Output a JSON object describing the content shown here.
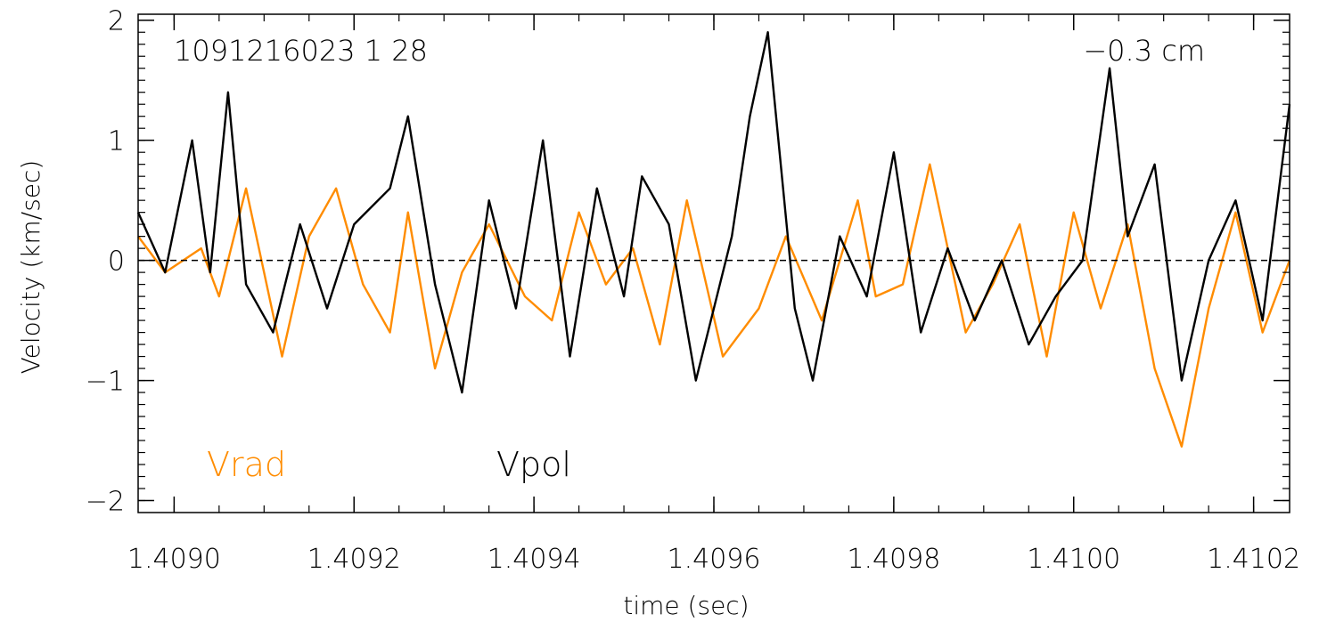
{
  "chart_data": {
    "type": "line",
    "title": "",
    "xlabel": "time (sec)",
    "ylabel": "Velocity (km/sec)",
    "xlim": [
      1.40896,
      1.41024
    ],
    "ylim": [
      -2.1,
      2.05
    ],
    "x_ticks": [
      1.409,
      1.4092,
      1.4094,
      1.4096,
      1.4098,
      1.41,
      1.4102
    ],
    "x_tick_labels": [
      "1.4090",
      "1.4092",
      "1.4094",
      "1.4096",
      "1.4098",
      "1.4100",
      "1.4102"
    ],
    "x_minor_step": 5e-05,
    "y_ticks": [
      -2,
      -1,
      0,
      1,
      2
    ],
    "y_tick_labels": [
      "−2",
      "−1",
      "0",
      "1",
      "2"
    ],
    "y_minor_step": 0.1,
    "reference_line": {
      "y": 0,
      "style": "dashed"
    },
    "annotations": {
      "shot_label": "1091216023  1  28",
      "position_label": "−0.3 cm"
    },
    "series": [
      {
        "name": "Vrad",
        "color": "#ff8c00",
        "x": [
          1.40896,
          1.40899,
          1.40903,
          1.40905,
          1.40908,
          1.40912,
          1.40915,
          1.40918,
          1.40921,
          1.40924,
          1.40926,
          1.40929,
          1.40932,
          1.40935,
          1.40939,
          1.40942,
          1.40945,
          1.40948,
          1.40951,
          1.40954,
          1.40957,
          1.40961,
          1.40965,
          1.40968,
          1.40972,
          1.40976,
          1.40978,
          1.40981,
          1.40984,
          1.40988,
          1.40991,
          1.40994,
          1.40997,
          1.41,
          1.41003,
          1.41006,
          1.41009,
          1.41012,
          1.41015,
          1.41018,
          1.41021,
          1.41024
        ],
        "y": [
          0.2,
          -0.1,
          0.1,
          -0.3,
          0.6,
          -0.8,
          0.2,
          0.6,
          -0.2,
          -0.6,
          0.4,
          -0.9,
          -0.1,
          0.3,
          -0.3,
          -0.5,
          0.4,
          -0.2,
          0.1,
          -0.7,
          0.5,
          -0.8,
          -0.4,
          0.2,
          -0.5,
          0.5,
          -0.3,
          -0.2,
          0.8,
          -0.6,
          -0.2,
          0.3,
          -0.8,
          0.4,
          -0.4,
          0.3,
          -0.9,
          -1.55,
          -0.4,
          0.4,
          -0.6,
          0.0
        ]
      },
      {
        "name": "Vpol",
        "color": "#000000",
        "x": [
          1.40896,
          1.40899,
          1.40902,
          1.40904,
          1.40906,
          1.40908,
          1.40911,
          1.40914,
          1.40917,
          1.4092,
          1.40924,
          1.40926,
          1.40929,
          1.40932,
          1.40935,
          1.40938,
          1.40941,
          1.40944,
          1.40947,
          1.4095,
          1.40952,
          1.40955,
          1.40958,
          1.40962,
          1.40964,
          1.40966,
          1.40969,
          1.40971,
          1.40974,
          1.40977,
          1.4098,
          1.40983,
          1.40986,
          1.40989,
          1.40992,
          1.40995,
          1.40998,
          1.41001,
          1.41004,
          1.41006,
          1.41009,
          1.41012,
          1.41015,
          1.41018,
          1.41021,
          1.41024
        ],
        "y": [
          0.4,
          -0.1,
          1.0,
          -0.1,
          1.4,
          -0.2,
          -0.6,
          0.3,
          -0.4,
          0.3,
          0.6,
          1.2,
          -0.2,
          -1.1,
          0.5,
          -0.4,
          1.0,
          -0.8,
          0.6,
          -0.3,
          0.7,
          0.3,
          -1.0,
          0.2,
          1.2,
          1.9,
          -0.4,
          -1.0,
          0.2,
          -0.3,
          0.9,
          -0.6,
          0.1,
          -0.5,
          0.0,
          -0.7,
          -0.3,
          0.0,
          1.6,
          0.2,
          0.8,
          -1.0,
          0.0,
          0.5,
          -0.5,
          1.3
        ]
      }
    ],
    "legend": [
      {
        "label": "Vrad",
        "color": "#ff8c00"
      },
      {
        "label": "Vpol",
        "color": "#000000"
      }
    ],
    "grid": false,
    "legend_position": "bottom-left"
  }
}
